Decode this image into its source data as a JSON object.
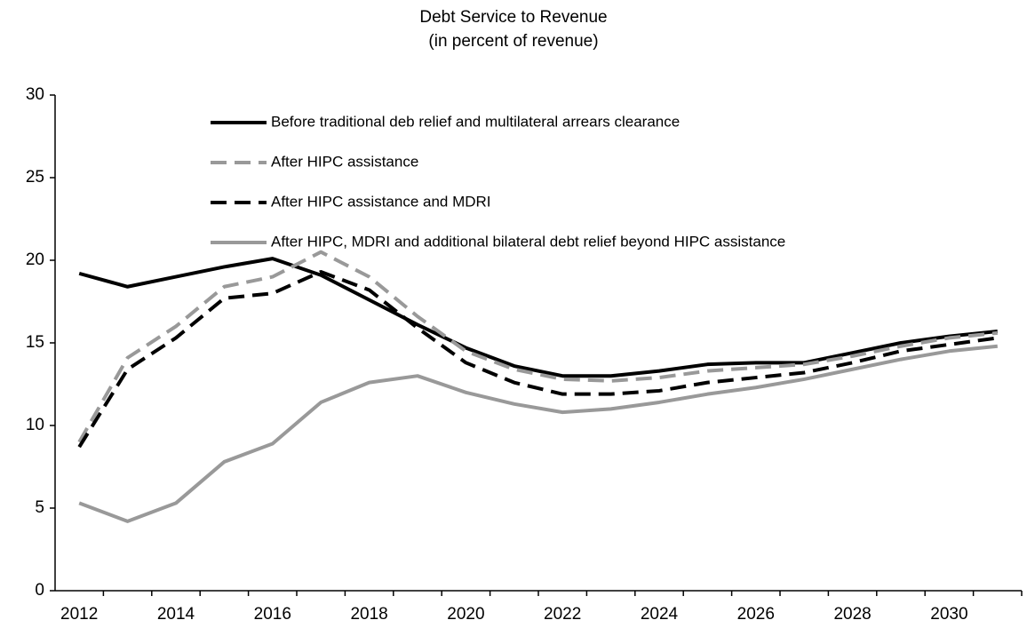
{
  "chart_data": {
    "type": "line",
    "title": "Debt Service to Revenue",
    "subtitle": "(in percent of revenue)",
    "categories": [
      "2012",
      null,
      "2014",
      null,
      "2016",
      null,
      "2018",
      null,
      "2020",
      null,
      "2022",
      null,
      "2024",
      null,
      "2026",
      null,
      "2028",
      null,
      "2030",
      null
    ],
    "series": [
      {
        "name": "Before traditional deb relief and multilateral arrears clearance",
        "color": "#000000",
        "dashed": false,
        "values": [
          19.2,
          18.4,
          19.0,
          19.6,
          20.1,
          19.1,
          17.6,
          16.1,
          14.7,
          13.6,
          13.0,
          13.0,
          13.3,
          13.7,
          13.8,
          13.8,
          14.4,
          15.0,
          15.4,
          15.7
        ]
      },
      {
        "name": "After HIPC assistance",
        "color": "#999999",
        "dashed": true,
        "values": [
          9.0,
          14.1,
          16.0,
          18.4,
          19.0,
          20.5,
          19.0,
          16.6,
          14.5,
          13.4,
          12.8,
          12.7,
          12.9,
          13.3,
          13.5,
          13.7,
          14.2,
          14.8,
          15.3,
          15.6
        ]
      },
      {
        "name": "After HIPC assistance and MDRI",
        "color": "#000000",
        "dashed": true,
        "values": [
          8.7,
          13.4,
          15.3,
          17.7,
          18.0,
          19.3,
          18.2,
          15.9,
          13.8,
          12.6,
          11.9,
          11.9,
          12.1,
          12.6,
          12.9,
          13.2,
          13.8,
          14.5,
          14.9,
          15.3
        ]
      },
      {
        "name": "After HIPC, MDRI and additional bilateral debt relief beyond HIPC assistance",
        "color": "#999999",
        "dashed": false,
        "values": [
          5.3,
          4.2,
          5.3,
          7.8,
          8.9,
          11.4,
          12.6,
          13.0,
          12.0,
          11.3,
          10.8,
          11.0,
          11.4,
          11.9,
          12.3,
          12.8,
          13.4,
          14.0,
          14.5,
          14.8
        ]
      }
    ],
    "ylim": [
      0,
      30
    ],
    "yticks": [
      0,
      5,
      10,
      15,
      20,
      25,
      30
    ],
    "grid": false,
    "legend": "top-left"
  }
}
